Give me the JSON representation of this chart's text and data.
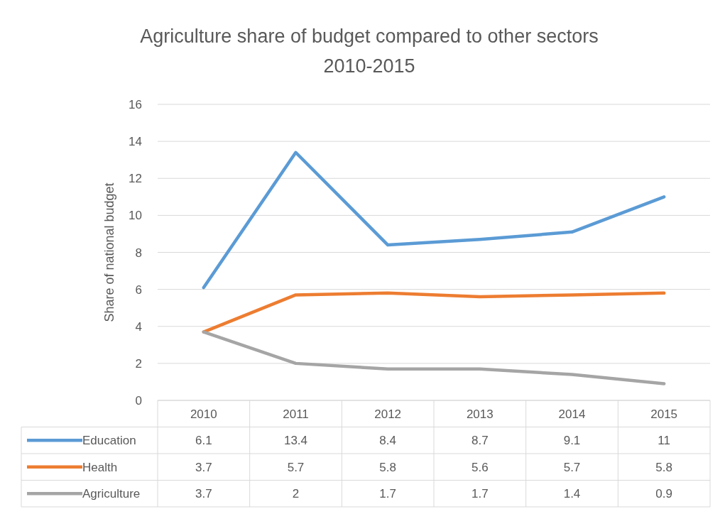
{
  "chart_data": {
    "type": "line",
    "title": "Agriculture share of budget compared to other sectors\n2010-2015",
    "ylabel": "Share of national budget",
    "categories": [
      "2010",
      "2011",
      "2012",
      "2013",
      "2014",
      "2015"
    ],
    "series": [
      {
        "name": "Education",
        "color": "#5b9bd5",
        "values": [
          6.1,
          13.4,
          8.4,
          8.7,
          9.1,
          11
        ]
      },
      {
        "name": "Health",
        "color": "#ed7d31",
        "values": [
          3.7,
          5.7,
          5.8,
          5.6,
          5.7,
          5.8
        ]
      },
      {
        "name": "Agriculture",
        "color": "#a5a5a5",
        "values": [
          3.7,
          2,
          1.7,
          1.7,
          1.4,
          0.9
        ]
      }
    ],
    "ylim": [
      0,
      16
    ],
    "yticks": [
      0,
      2,
      4,
      6,
      8,
      10,
      12,
      14,
      16
    ],
    "grid": "y",
    "legend": "bottom",
    "data_labels": true,
    "marker": "none",
    "line_style": "solid"
  }
}
